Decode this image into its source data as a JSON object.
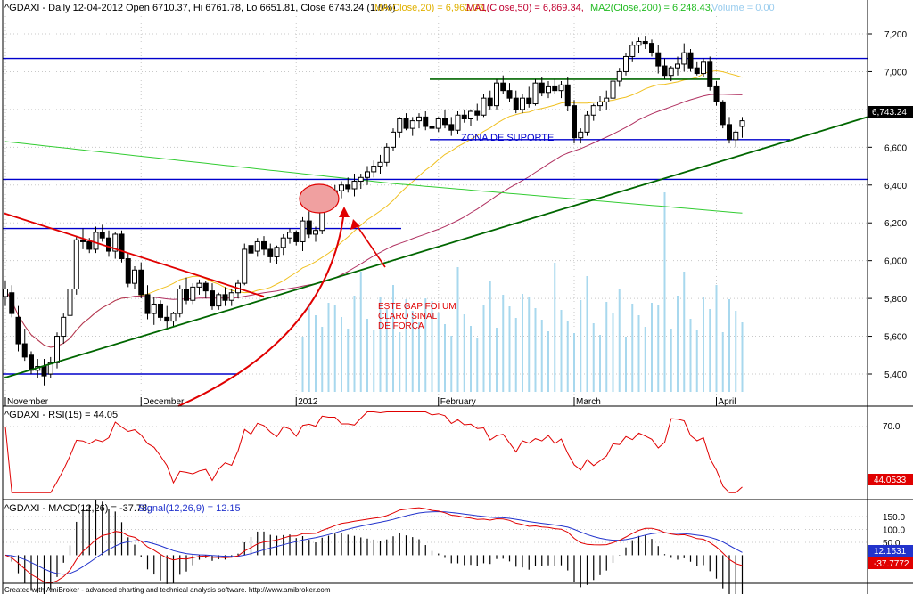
{
  "header": {
    "ticker": "^GDAXI",
    "info": "^GDAXI - Daily 12-04-2012 Open 6710.37, Hi 6761.78, Lo 6651.81, Close 6743.24 (1.0%)",
    "ma20": "MA(Close,20) = 6,962.03,",
    "ma50": "MA1(Close,50) = 6,869.34,",
    "ma200": "MA2(Close,200) = 6,248.43,",
    "volume": "Volume = 0.00"
  },
  "colors": {
    "ma20": "#f0c020",
    "ma50": "#b03060",
    "ma200": "#33cc33",
    "level": "#0000cc",
    "trend": "#006600",
    "red": "#e00000",
    "volume": "#a8d8ee",
    "rsi": "#e00000",
    "macd": "#e00000",
    "signal": "#2233cc"
  },
  "annotations": {
    "suporte": "ZONA DE SUPORTE",
    "gap_line1": "ESTE GAP FOI UM",
    "gap_line2": "CLARO SINAL",
    "gap_line3": "DE FORÇA"
  },
  "price_panel": {
    "current_value": "6,743.24",
    "yticks": [
      {
        "v": 7200,
        "label": "7,200"
      },
      {
        "v": 7000,
        "label": "7,000"
      },
      {
        "v": 6800,
        "label": "6,800"
      },
      {
        "v": 6600,
        "label": "6,600"
      },
      {
        "v": 6400,
        "label": "6,400"
      },
      {
        "v": 6200,
        "label": "6,200"
      },
      {
        "v": 6000,
        "label": "6,000"
      },
      {
        "v": 5800,
        "label": "5,800"
      },
      {
        "v": 5600,
        "label": "5,600"
      },
      {
        "v": 5400,
        "label": "5,400"
      }
    ],
    "months": [
      {
        "label": "November",
        "i": 0
      },
      {
        "label": "December",
        "i": 21
      },
      {
        "label": "2012",
        "i": 45
      },
      {
        "label": "February",
        "i": 67
      },
      {
        "label": "March",
        "i": 88
      },
      {
        "label": "April",
        "i": 110
      }
    ]
  },
  "rsi_panel": {
    "title": "^GDAXI - RSI(15) = 44.05",
    "current_value": "44.0533",
    "tick_label": "70.0"
  },
  "macd_panel": {
    "title_a": "^GDAXI - MACD(12,26) = -37.78,",
    "title_b": "Signal(12,26,9) = 12.15",
    "signal_value": "12.1531",
    "macd_value": "-37.7772",
    "ticks": [
      {
        "v": 150,
        "label": "150.0"
      },
      {
        "v": 100,
        "label": "100.0"
      },
      {
        "v": 50,
        "label": "50.0"
      }
    ]
  },
  "footer": "Created with AmiBroker - advanced charting and technical analysis software. http://www.amibroker.com",
  "chart_data": {
    "type": "candlestick",
    "title": "^GDAXI - Daily 12-04-2012",
    "xlabel": "",
    "ylabel": "",
    "ylim": [
      5330,
      7300
    ],
    "levels": [
      7070,
      6640,
      6430,
      6170,
      5400
    ],
    "ohlc": [
      [
        5810,
        5890,
        5760,
        5850
      ],
      [
        5830,
        5870,
        5700,
        5720
      ],
      [
        5700,
        5760,
        5520,
        5560
      ],
      [
        5560,
        5640,
        5470,
        5490
      ],
      [
        5500,
        5520,
        5400,
        5420
      ],
      [
        5420,
        5480,
        5380,
        5440
      ],
      [
        5440,
        5480,
        5340,
        5390
      ],
      [
        5400,
        5490,
        5380,
        5460
      ],
      [
        5460,
        5620,
        5430,
        5600
      ],
      [
        5600,
        5720,
        5560,
        5700
      ],
      [
        5710,
        5860,
        5680,
        5850
      ],
      [
        5850,
        6130,
        5820,
        6110
      ],
      [
        6110,
        6170,
        6060,
        6100
      ],
      [
        6100,
        6120,
        6040,
        6060
      ],
      [
        6060,
        6180,
        6040,
        6150
      ],
      [
        6150,
        6190,
        6100,
        6120
      ],
      [
        6120,
        6160,
        6020,
        6050
      ],
      [
        6050,
        6150,
        6010,
        6140
      ],
      [
        6140,
        6160,
        5990,
        6010
      ],
      [
        6010,
        6040,
        5860,
        5880
      ],
      [
        5880,
        5970,
        5850,
        5950
      ],
      [
        5950,
        5990,
        5800,
        5820
      ],
      [
        5820,
        5870,
        5690,
        5720
      ],
      [
        5720,
        5810,
        5660,
        5770
      ],
      [
        5770,
        5790,
        5680,
        5700
      ],
      [
        5700,
        5760,
        5640,
        5680
      ],
      [
        5680,
        5730,
        5650,
        5720
      ],
      [
        5720,
        5870,
        5700,
        5850
      ],
      [
        5850,
        5910,
        5770,
        5790
      ],
      [
        5790,
        5880,
        5770,
        5860
      ],
      [
        5860,
        5900,
        5820,
        5880
      ],
      [
        5880,
        5890,
        5800,
        5840
      ],
      [
        5840,
        5880,
        5740,
        5760
      ],
      [
        5760,
        5830,
        5740,
        5820
      ],
      [
        5820,
        5860,
        5760,
        5790
      ],
      [
        5790,
        5850,
        5760,
        5830
      ],
      [
        5830,
        5900,
        5800,
        5880
      ],
      [
        5880,
        6090,
        5870,
        6060
      ],
      [
        6080,
        6170,
        6020,
        6040
      ],
      [
        6050,
        6120,
        6020,
        6100
      ],
      [
        6100,
        6130,
        6030,
        6060
      ],
      [
        6060,
        6090,
        5990,
        6020
      ],
      [
        6020,
        6080,
        5980,
        6070
      ],
      [
        6070,
        6140,
        6030,
        6120
      ],
      [
        6120,
        6170,
        6090,
        6150
      ],
      [
        6150,
        6160,
        6080,
        6100
      ],
      [
        6100,
        6230,
        6050,
        6210
      ],
      [
        6210,
        6260,
        6120,
        6140
      ],
      [
        6140,
        6180,
        6100,
        6160
      ],
      [
        6160,
        6330,
        6140,
        6310
      ],
      [
        6310,
        6350,
        6280,
        6320
      ],
      [
        6320,
        6400,
        6300,
        6370
      ],
      [
        6370,
        6420,
        6330,
        6400
      ],
      [
        6400,
        6440,
        6360,
        6380
      ],
      [
        6380,
        6460,
        6340,
        6420
      ],
      [
        6420,
        6460,
        6380,
        6440
      ],
      [
        6440,
        6500,
        6400,
        6470
      ],
      [
        6470,
        6530,
        6440,
        6500
      ],
      [
        6500,
        6560,
        6460,
        6520
      ],
      [
        6520,
        6620,
        6500,
        6600
      ],
      [
        6600,
        6700,
        6580,
        6680
      ],
      [
        6680,
        6760,
        6650,
        6750
      ],
      [
        6750,
        6780,
        6690,
        6700
      ],
      [
        6700,
        6760,
        6660,
        6740
      ],
      [
        6740,
        6780,
        6700,
        6760
      ],
      [
        6760,
        6790,
        6690,
        6710
      ],
      [
        6710,
        6750,
        6680,
        6700
      ],
      [
        6700,
        6760,
        6680,
        6750
      ],
      [
        6750,
        6800,
        6700,
        6720
      ],
      [
        6720,
        6760,
        6660,
        6690
      ],
      [
        6690,
        6790,
        6670,
        6770
      ],
      [
        6770,
        6800,
        6730,
        6750
      ],
      [
        6750,
        6800,
        6710,
        6790
      ],
      [
        6790,
        6830,
        6740,
        6770
      ],
      [
        6770,
        6880,
        6760,
        6860
      ],
      [
        6860,
        6900,
        6800,
        6820
      ],
      [
        6820,
        6960,
        6800,
        6940
      ],
      [
        6940,
        6980,
        6880,
        6900
      ],
      [
        6900,
        6940,
        6840,
        6860
      ],
      [
        6860,
        6900,
        6780,
        6800
      ],
      [
        6800,
        6880,
        6780,
        6860
      ],
      [
        6860,
        6920,
        6810,
        6830
      ],
      [
        6830,
        6960,
        6820,
        6940
      ],
      [
        6940,
        6970,
        6870,
        6890
      ],
      [
        6890,
        6950,
        6860,
        6920
      ],
      [
        6920,
        6960,
        6880,
        6900
      ],
      [
        6900,
        6950,
        6860,
        6930
      ],
      [
        6930,
        6970,
        6790,
        6820
      ],
      [
        6820,
        6850,
        6620,
        6650
      ],
      [
        6650,
        6700,
        6620,
        6680
      ],
      [
        6680,
        6790,
        6660,
        6770
      ],
      [
        6770,
        6830,
        6740,
        6820
      ],
      [
        6820,
        6870,
        6790,
        6840
      ],
      [
        6840,
        6900,
        6800,
        6860
      ],
      [
        6860,
        6960,
        6840,
        6950
      ],
      [
        6950,
        7020,
        6920,
        7000
      ],
      [
        7000,
        7100,
        6980,
        7080
      ],
      [
        7080,
        7160,
        7050,
        7140
      ],
      [
        7140,
        7180,
        7100,
        7160
      ],
      [
        7160,
        7190,
        7120,
        7150
      ],
      [
        7150,
        7170,
        7080,
        7100
      ],
      [
        7100,
        7140,
        6990,
        7030
      ],
      [
        7030,
        7070,
        6960,
        6980
      ],
      [
        6980,
        7030,
        6950,
        7020
      ],
      [
        7020,
        7080,
        6980,
        7040
      ],
      [
        7040,
        7150,
        7000,
        7100
      ],
      [
        7100,
        7120,
        7000,
        7020
      ],
      [
        7020,
        7050,
        6980,
        6990
      ],
      [
        6990,
        7070,
        6970,
        7050
      ],
      [
        7050,
        7080,
        6900,
        6920
      ],
      [
        6920,
        6950,
        6820,
        6840
      ],
      [
        6840,
        6850,
        6700,
        6720
      ],
      [
        6720,
        6760,
        6620,
        6640
      ],
      [
        6640,
        6690,
        6600,
        6680
      ],
      [
        6710,
        6760,
        6650,
        6740
      ]
    ]
  }
}
